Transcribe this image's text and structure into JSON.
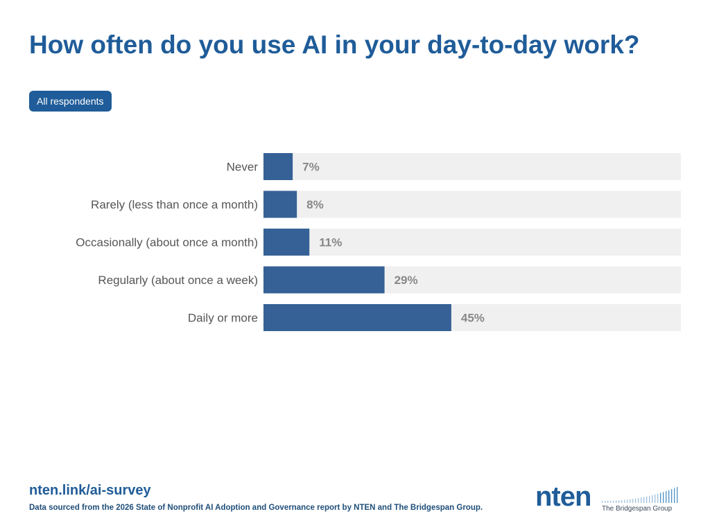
{
  "title": "How often do you use AI in your day-to-day work?",
  "filter": {
    "label": "All respondents"
  },
  "colors": {
    "accent": "#1f5c99",
    "bar": "#356196",
    "track": "#f0f0f0",
    "value_text": "#888888",
    "label_text": "#555555"
  },
  "chart_data": {
    "type": "bar",
    "orientation": "horizontal",
    "categories": [
      "Never",
      "Rarely (less than once a month)",
      "Occasionally (about once a month)",
      "Regularly (about once a week)",
      "Daily or more"
    ],
    "values": [
      7,
      8,
      11,
      29,
      45
    ],
    "value_labels": [
      "7%",
      "8%",
      "11%",
      "29%",
      "45%"
    ],
    "xlim": [
      0,
      100
    ],
    "grid": false
  },
  "footer": {
    "link": "nten.link/ai-survey",
    "source": "Data sourced from the 2026 State of Nonprofit AI Adoption and Governance report by NTEN and The Bridgespan Group."
  },
  "logos": {
    "nten": "nten",
    "bridgespan": "The Bridgespan Group"
  }
}
